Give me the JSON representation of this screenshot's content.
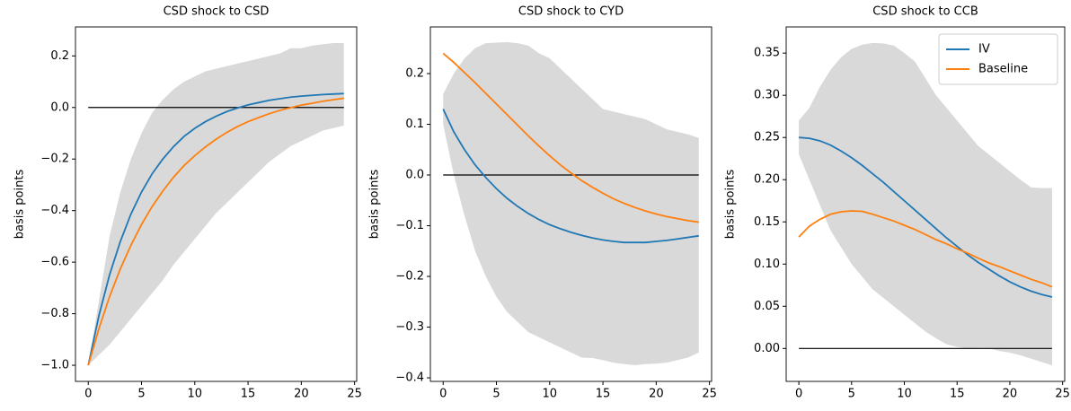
{
  "chart_data": [
    {
      "type": "line",
      "title": "CSD shock to CSD",
      "ylabel": "basis points",
      "x": [
        0,
        1,
        2,
        3,
        4,
        5,
        6,
        7,
        8,
        9,
        10,
        11,
        12,
        13,
        14,
        15,
        16,
        17,
        18,
        19,
        20,
        21,
        22,
        23,
        24
      ],
      "series": [
        {
          "color": "#1f77b4",
          "values": [
            -1.0,
            -0.808,
            -0.649,
            -0.521,
            -0.414,
            -0.328,
            -0.257,
            -0.2,
            -0.152,
            -0.112,
            -0.081,
            -0.055,
            -0.034,
            -0.016,
            -0.002,
            0.01,
            0.019,
            0.028,
            0.034,
            0.04,
            0.044,
            0.047,
            0.05,
            0.052,
            0.054
          ]
        },
        {
          "color": "#ff7f0e",
          "values": [
            -1.0,
            -0.858,
            -0.734,
            -0.627,
            -0.535,
            -0.454,
            -0.384,
            -0.324,
            -0.271,
            -0.225,
            -0.187,
            -0.153,
            -0.123,
            -0.097,
            -0.074,
            -0.055,
            -0.039,
            -0.024,
            -0.011,
            -0.001,
            0.009,
            0.016,
            0.024,
            0.03,
            0.036
          ]
        }
      ],
      "band": {
        "color": "#d9d9d9",
        "upper": [
          -1.0,
          -0.75,
          -0.5,
          -0.33,
          -0.2,
          -0.1,
          -0.02,
          0.03,
          0.07,
          0.1,
          0.12,
          0.14,
          0.15,
          0.16,
          0.17,
          0.18,
          0.19,
          0.2,
          0.21,
          0.23,
          0.23,
          0.24,
          0.245,
          0.25,
          0.25
        ],
        "lower": [
          -1.0,
          -0.96,
          -0.92,
          -0.87,
          -0.82,
          -0.77,
          -0.72,
          -0.67,
          -0.61,
          -0.56,
          -0.51,
          -0.46,
          -0.41,
          -0.37,
          -0.33,
          -0.29,
          -0.25,
          -0.21,
          -0.18,
          -0.15,
          -0.13,
          -0.11,
          -0.09,
          -0.08,
          -0.07
        ]
      },
      "hline": 0,
      "xlim": [
        -1.2,
        25.2
      ],
      "xticks": [
        0,
        5,
        10,
        15,
        20,
        25
      ],
      "ylim": [
        -1.0625,
        0.3125
      ],
      "yticks": [
        {
          "value": -1.0,
          "label": "−1.0"
        },
        {
          "value": -0.8,
          "label": "−0.8"
        },
        {
          "value": -0.6,
          "label": "−0.6"
        },
        {
          "value": -0.4,
          "label": "−0.4"
        },
        {
          "value": -0.2,
          "label": "−0.2"
        },
        {
          "value": 0,
          "label": "0.0"
        },
        {
          "value": 0.2,
          "label": "0.2"
        }
      ]
    },
    {
      "type": "line",
      "title": "CSD shock to CYD",
      "ylabel": "basis points",
      "x": [
        0,
        1,
        2,
        3,
        4,
        5,
        6,
        7,
        8,
        9,
        10,
        11,
        12,
        13,
        14,
        15,
        16,
        17,
        18,
        19,
        20,
        21,
        22,
        23,
        24
      ],
      "series": [
        {
          "color": "#1f77b4",
          "values": [
            0.13,
            0.085,
            0.05,
            0.02,
            -0.005,
            -0.027,
            -0.046,
            -0.062,
            -0.076,
            -0.088,
            -0.098,
            -0.106,
            -0.113,
            -0.119,
            -0.124,
            -0.128,
            -0.131,
            -0.133,
            -0.133,
            -0.133,
            -0.131,
            -0.129,
            -0.126,
            -0.123,
            -0.12
          ]
        },
        {
          "color": "#ff7f0e",
          "values": [
            0.24,
            0.222,
            0.202,
            0.182,
            0.161,
            0.14,
            0.119,
            0.098,
            0.077,
            0.057,
            0.038,
            0.02,
            0.004,
            -0.011,
            -0.024,
            -0.036,
            -0.047,
            -0.056,
            -0.064,
            -0.071,
            -0.077,
            -0.082,
            -0.086,
            -0.09,
            -0.093
          ]
        }
      ],
      "band": {
        "color": "#d9d9d9",
        "upper": [
          0.16,
          0.2,
          0.23,
          0.25,
          0.26,
          0.261,
          0.262,
          0.26,
          0.255,
          0.24,
          0.23,
          0.21,
          0.19,
          0.17,
          0.15,
          0.13,
          0.125,
          0.12,
          0.115,
          0.11,
          0.1,
          0.09,
          0.085,
          0.08,
          0.073
        ],
        "lower": [
          0.1,
          0.0,
          -0.08,
          -0.15,
          -0.2,
          -0.24,
          -0.27,
          -0.29,
          -0.31,
          -0.32,
          -0.33,
          -0.34,
          -0.35,
          -0.36,
          -0.361,
          -0.365,
          -0.37,
          -0.373,
          -0.375,
          -0.373,
          -0.372,
          -0.37,
          -0.365,
          -0.36,
          -0.35
        ]
      },
      "hline": 0,
      "xlim": [
        -1.2,
        25.2
      ],
      "xticks": [
        0,
        5,
        10,
        15,
        20,
        25
      ],
      "ylim": [
        -0.407,
        0.292
      ],
      "yticks": [
        {
          "value": -0.4,
          "label": "−0.4"
        },
        {
          "value": -0.3,
          "label": "−0.3"
        },
        {
          "value": -0.2,
          "label": "−0.2"
        },
        {
          "value": -0.1,
          "label": "−0.1"
        },
        {
          "value": 0,
          "label": "0.0"
        },
        0.1,
        0.2
      ]
    },
    {
      "type": "line",
      "title": "CSD shock to CCB",
      "ylabel": "basis points",
      "legend": "upper right",
      "x": [
        0,
        1,
        2,
        3,
        4,
        5,
        6,
        7,
        8,
        9,
        10,
        11,
        12,
        13,
        14,
        15,
        16,
        17,
        18,
        19,
        20,
        21,
        22,
        23,
        24
      ],
      "series": [
        {
          "name": "IV",
          "color": "#1f77b4",
          "values": [
            0.25,
            0.249,
            0.246,
            0.241,
            0.234,
            0.226,
            0.217,
            0.207,
            0.197,
            0.186,
            0.175,
            0.164,
            0.153,
            0.142,
            0.131,
            0.121,
            0.111,
            0.102,
            0.094,
            0.086,
            0.079,
            0.073,
            0.068,
            0.064,
            0.061
          ]
        },
        {
          "name": "Baseline",
          "color": "#ff7f0e",
          "values": [
            0.132,
            0.145,
            0.153,
            0.159,
            0.162,
            0.163,
            0.1625,
            0.159,
            0.155,
            0.151,
            0.146,
            0.141,
            0.135,
            0.129,
            0.124,
            0.118,
            0.113,
            0.107,
            0.1015,
            0.097,
            0.092,
            0.087,
            0.082,
            0.078,
            0.073
          ]
        }
      ],
      "band": {
        "color": "#d9d9d9",
        "upper": [
          0.27,
          0.285,
          0.31,
          0.33,
          0.345,
          0.355,
          0.36,
          0.362,
          0.3615,
          0.359,
          0.35,
          0.34,
          0.32,
          0.3,
          0.285,
          0.27,
          0.255,
          0.24,
          0.23,
          0.22,
          0.21,
          0.2,
          0.191,
          0.19,
          0.19
        ],
        "lower": [
          0.23,
          0.2,
          0.17,
          0.14,
          0.12,
          0.1,
          0.085,
          0.07,
          0.06,
          0.05,
          0.04,
          0.03,
          0.02,
          0.012,
          0.005,
          0.002,
          0.0,
          0.0005,
          0.0003,
          -0.003,
          -0.005,
          -0.008,
          -0.012,
          -0.016,
          -0.02
        ]
      },
      "hline": 0,
      "xlim": [
        -1.2,
        25.2
      ],
      "xticks": [
        0,
        5,
        10,
        15,
        20,
        25
      ],
      "ylim": [
        -0.039,
        0.381
      ],
      "yticks": [
        {
          "value": 0,
          "label": "0.00"
        },
        {
          "value": 0.05,
          "label": "0.05"
        },
        {
          "value": 0.1,
          "label": "0.10"
        },
        {
          "value": 0.15,
          "label": "0.15"
        },
        {
          "value": 0.2,
          "label": "0.20"
        },
        {
          "value": 0.25,
          "label": "0.25"
        },
        {
          "value": 0.3,
          "label": "0.30"
        },
        {
          "value": 0.35,
          "label": "0.35"
        }
      ]
    }
  ]
}
